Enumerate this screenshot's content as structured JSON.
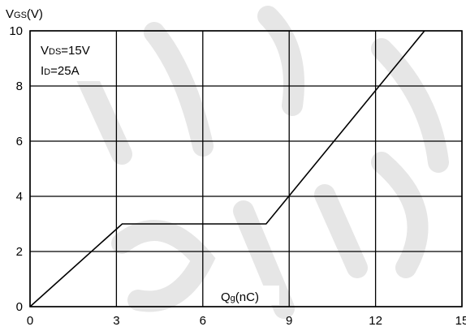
{
  "chart_data": {
    "type": "line",
    "title": "",
    "ylabel": {
      "main": "V",
      "sub": "GS",
      "unit": "(V)"
    },
    "xlabel": {
      "main": "Q",
      "sub": "g",
      "unit": "(nC)"
    },
    "annotations": [
      {
        "main": "V",
        "sub": "DS",
        "value": "=15V"
      },
      {
        "main": "I",
        "sub": "D",
        "value": "=25A"
      }
    ],
    "xlim": [
      0,
      15
    ],
    "ylim": [
      0,
      10
    ],
    "xticks": [
      0,
      3,
      6,
      9,
      12,
      15
    ],
    "yticks": [
      0,
      2,
      4,
      6,
      8,
      10
    ],
    "grid": true,
    "series": [
      {
        "x": [
          0,
          3.2,
          8.2,
          13.7
        ],
        "y": [
          0,
          3.0,
          3.0,
          10.0
        ]
      }
    ],
    "watermark_text": "chip"
  }
}
